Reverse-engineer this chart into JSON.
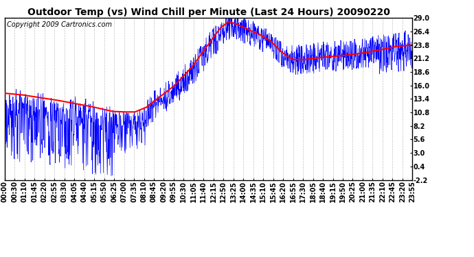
{
  "title": "Outdoor Temp (vs) Wind Chill per Minute (Last 24 Hours) 20090220",
  "copyright_text": "Copyright 2009 Cartronics.com",
  "yticks": [
    29.0,
    26.4,
    23.8,
    21.2,
    18.6,
    16.0,
    13.4,
    10.8,
    8.2,
    5.6,
    3.0,
    0.4,
    -2.2
  ],
  "ylim": [
    -2.2,
    29.0
  ],
  "xtick_labels": [
    "00:00",
    "00:30",
    "01:10",
    "01:45",
    "02:20",
    "02:55",
    "03:30",
    "04:05",
    "04:40",
    "05:15",
    "05:50",
    "06:25",
    "07:00",
    "07:35",
    "08:10",
    "08:45",
    "09:20",
    "09:55",
    "10:30",
    "11:05",
    "11:40",
    "12:15",
    "12:50",
    "13:25",
    "14:00",
    "14:35",
    "15:10",
    "15:45",
    "16:20",
    "16:55",
    "17:30",
    "18:05",
    "18:40",
    "19:15",
    "19:50",
    "20:25",
    "21:00",
    "21:35",
    "22:10",
    "22:45",
    "23:20",
    "23:55"
  ],
  "blue_color": "#0000ff",
  "red_color": "#ff0000",
  "grid_color": "#c0c0c0",
  "background_color": "#ffffff",
  "title_fontsize": 10,
  "copyright_fontsize": 7,
  "tick_fontsize": 7
}
